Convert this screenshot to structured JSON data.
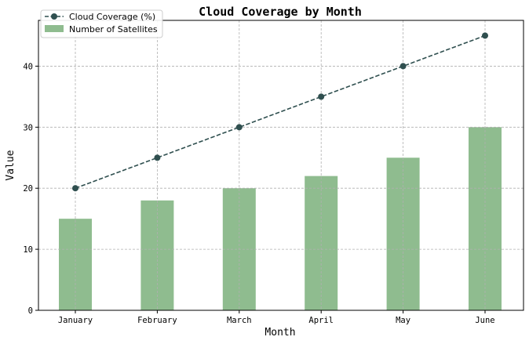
{
  "chart_data": {
    "type": "bar",
    "title": "Cloud Coverage by Month",
    "xlabel": "Month",
    "ylabel": "Value",
    "categories": [
      "January",
      "February",
      "March",
      "April",
      "May",
      "June"
    ],
    "ylim": [
      0,
      47.5
    ],
    "yticks": [
      0,
      10,
      20,
      30,
      40
    ],
    "grid": true,
    "legend_position": "top-left",
    "series": [
      {
        "name": "Cloud Coverage (%)",
        "kind": "line",
        "style": "dashed with circle markers",
        "color": "#2f4f4f",
        "values": [
          20,
          25,
          30,
          35,
          40,
          45
        ]
      },
      {
        "name": "Number of Satellites",
        "kind": "bar",
        "color": "#8fbc8f",
        "values": [
          15,
          18,
          20,
          22,
          25,
          30
        ]
      }
    ]
  }
}
